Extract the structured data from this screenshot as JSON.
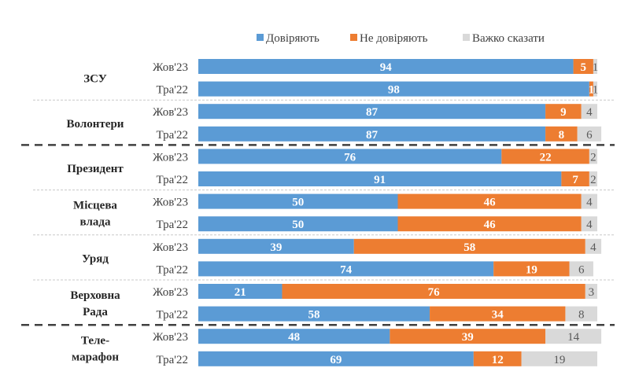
{
  "chart_data": {
    "type": "bar",
    "orientation": "horizontal",
    "stacked": true,
    "title": "",
    "xlabel": "",
    "ylabel": "",
    "xlim": [
      0,
      100
    ],
    "grid": false,
    "legend_position": "top",
    "legend": [
      {
        "name": "Довіряють",
        "color": "#5B9BD5"
      },
      {
        "name": "Не довіряють",
        "color": "#ED7D31"
      },
      {
        "name": "Важко сказати",
        "color": "#D9D9D9"
      }
    ],
    "groups": [
      {
        "label": [
          "ЗСУ"
        ],
        "separator_after": "dotted",
        "rows": [
          {
            "period": "Жов'23",
            "values": [
              94,
              5,
              1
            ]
          },
          {
            "period": "Тра'22",
            "values": [
              98,
              1,
              1
            ]
          }
        ]
      },
      {
        "label": [
          "Волонтери"
        ],
        "separator_after": "dashed",
        "rows": [
          {
            "period": "Жов'23",
            "values": [
              87,
              9,
              4
            ]
          },
          {
            "period": "Тра'22",
            "values": [
              87,
              8,
              6
            ]
          }
        ]
      },
      {
        "label": [
          "Президент"
        ],
        "separator_after": "dotted",
        "rows": [
          {
            "period": "Жов'23",
            "values": [
              76,
              22,
              2
            ]
          },
          {
            "period": "Тра'22",
            "values": [
              91,
              7,
              2
            ]
          }
        ]
      },
      {
        "label": [
          "Місцева",
          "влада"
        ],
        "separator_after": "dotted",
        "rows": [
          {
            "period": "Жов'23",
            "values": [
              50,
              46,
              4
            ]
          },
          {
            "period": "Тра'22",
            "values": [
              50,
              46,
              4
            ]
          }
        ]
      },
      {
        "label": [
          "Уряд"
        ],
        "separator_after": "dotted",
        "rows": [
          {
            "period": "Жов'23",
            "values": [
              39,
              58,
              4
            ]
          },
          {
            "period": "Тра'22",
            "values": [
              74,
              19,
              6
            ]
          }
        ]
      },
      {
        "label": [
          "Верховна",
          "Рада"
        ],
        "separator_after": "dashed",
        "rows": [
          {
            "period": "Жов'23",
            "values": [
              21,
              76,
              3
            ]
          },
          {
            "period": "Тра'22",
            "values": [
              58,
              34,
              8
            ]
          }
        ]
      },
      {
        "label": [
          "Теле-",
          "марафон"
        ],
        "separator_after": "none",
        "rows": [
          {
            "period": "Жов'23",
            "values": [
              48,
              39,
              14
            ]
          },
          {
            "period": "Тра'22",
            "values": [
              69,
              12,
              19
            ]
          }
        ]
      }
    ]
  }
}
